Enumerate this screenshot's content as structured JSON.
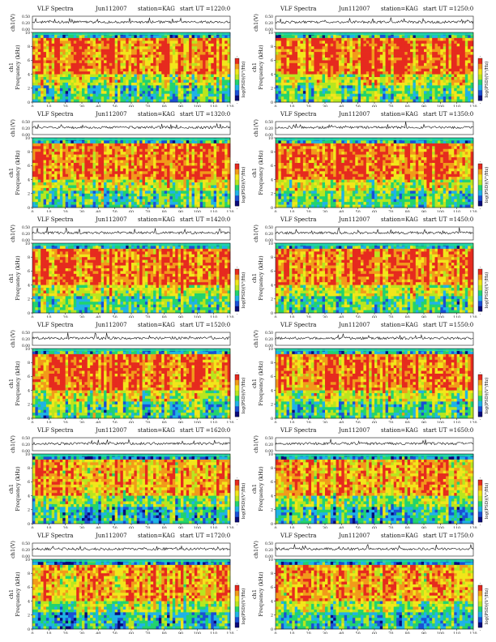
{
  "colors": {
    "scale": [
      "#0a0a7a",
      "#1a4fd6",
      "#1fb3e6",
      "#22d36e",
      "#b8e61f",
      "#f2e61a",
      "#f29a1a",
      "#e62a1f"
    ],
    "trace": "#111111",
    "band": "#20d6a8"
  },
  "panel_labels": {
    "title": "VLF Spectra",
    "station": "station=KAG",
    "start_prefix": "start  UT =",
    "ch_axis": "ch1(V)",
    "freq_axis": "Frequency (kHz)",
    "ch_label": "ch1",
    "time_axis": "Time (sec)",
    "colorbar": "log(PSD)(V²/Hz)"
  },
  "chart_data": {
    "type": "heatmap",
    "layout": "6 rows x 2 columns spectrogram grid",
    "x": {
      "label": "Time (sec)",
      "range": [
        0,
        120
      ],
      "ticks": [
        0,
        10,
        20,
        30,
        40,
        50,
        60,
        70,
        80,
        90,
        100,
        110,
        120
      ]
    },
    "y": {
      "label": "Frequency (kHz)",
      "range": [
        0,
        10
      ],
      "ticks": [
        0,
        2,
        4,
        6,
        8,
        10
      ]
    },
    "ch1_ticks": [
      "0.00",
      "0.20",
      "0.50"
    ],
    "colorbar_ticks": [
      "-",
      "-"
    ],
    "panels": [
      {
        "date": "Jun112007",
        "start": "1220:0",
        "title": "VLF Spectra"
      },
      {
        "date": "Jun112007",
        "start": "1250:0",
        "title": "VLF Spectra"
      },
      {
        "date": "Jun112007",
        "start": "1320:0",
        "title": "VLF Spectra"
      },
      {
        "date": "Jun112007",
        "start": "1350:0",
        "title": "VLF Spectra"
      },
      {
        "date": "Jun112007",
        "start": "1420:0",
        "title": "VLF Spectra"
      },
      {
        "date": "Jun112007",
        "start": "1450:0",
        "title": "VLF Spectra"
      },
      {
        "date": "Jun112007",
        "start": "1520:0",
        "title": "VLF Spectra"
      },
      {
        "date": "Jun112007",
        "start": "1550:0",
        "title": "VLF Spectra"
      },
      {
        "date": "Jun112007",
        "start": "1620:0",
        "title": "VLF Spectra"
      },
      {
        "date": "Jun112007",
        "start": "1650:0",
        "title": "VLF Spectra"
      },
      {
        "date": "Jun112007",
        "start": "1720:0",
        "title": "VLF Spectra"
      },
      {
        "date": "Jun112007",
        "start": "1750:0",
        "title": "VLF Spectra"
      }
    ]
  }
}
